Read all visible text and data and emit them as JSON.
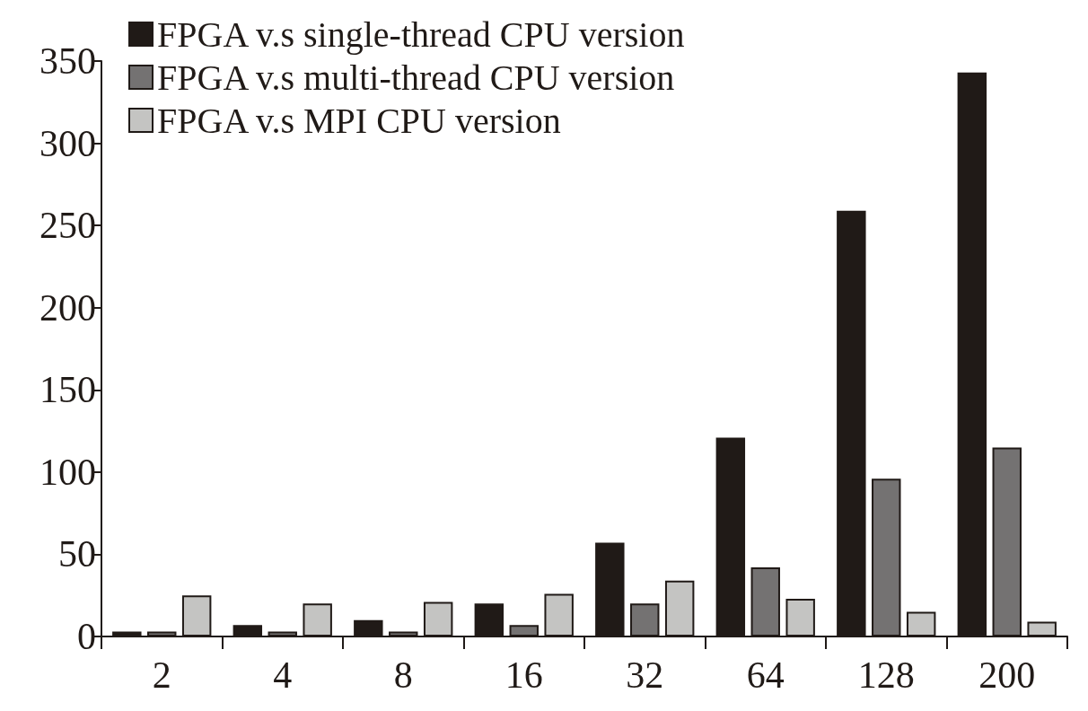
{
  "chart_data": {
    "type": "bar",
    "categories": [
      "2",
      "4",
      "8",
      "16",
      "32",
      "64",
      "128",
      "200"
    ],
    "series": [
      {
        "name": "FPGA v.s single-thread CPU version",
        "color": "#201a17",
        "values": [
          3,
          7,
          10,
          20,
          57,
          121,
          259,
          343
        ]
      },
      {
        "name": "FPGA v.s multi-thread CPU version",
        "color": "#747272",
        "values": [
          3,
          3,
          3,
          7,
          20,
          42,
          96,
          115
        ]
      },
      {
        "name": "FPGA v.s MPI CPU version",
        "color": "#c4c4c2",
        "values": [
          25,
          20,
          21,
          26,
          34,
          23,
          15,
          9
        ]
      }
    ],
    "ylim": [
      0,
      350
    ],
    "yticks": [
      0,
      50,
      100,
      150,
      200,
      250,
      300,
      350
    ],
    "grid": false,
    "legend": "top left"
  }
}
